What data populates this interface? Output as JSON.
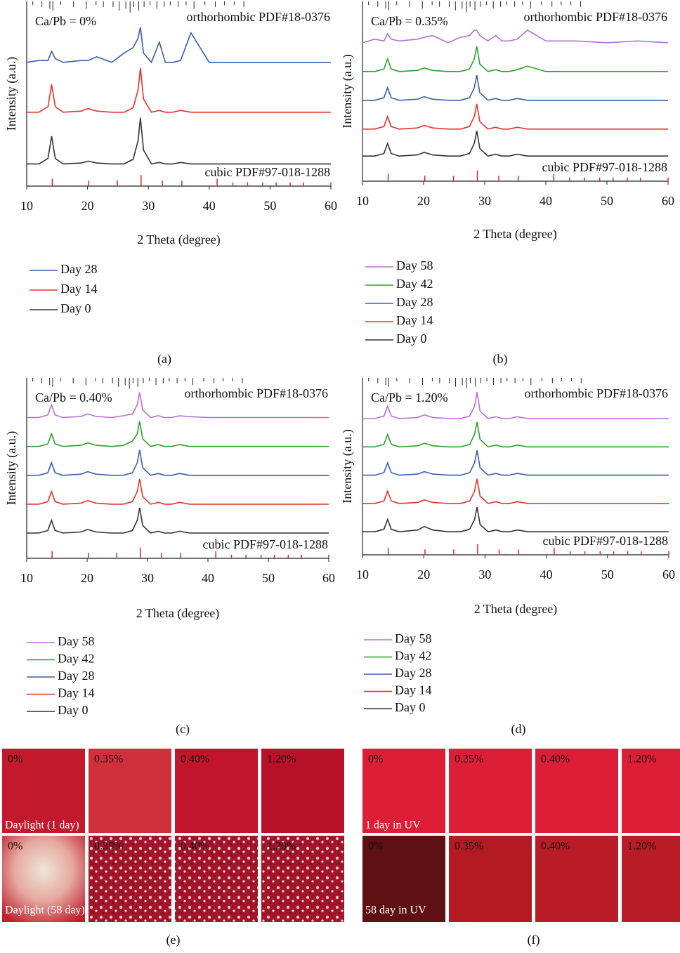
{
  "chart_data": [
    {
      "type": "line",
      "panel": "(a)",
      "annotation": "Ca/Pb = 0%",
      "xlabel": "2 Theta (degree)",
      "ylabel": "Intensity (a.u.)",
      "xlim": [
        10,
        60
      ],
      "xticks": [
        10,
        20,
        30,
        40,
        50,
        60
      ],
      "ylim": [
        0,
        100
      ],
      "x": [
        10,
        12,
        13.5,
        14.1,
        14.7,
        16,
        19,
        20.1,
        21.5,
        24,
        26,
        27.5,
        28.3,
        28.7,
        29.2,
        30.5,
        31.8,
        32.8,
        34,
        35.3,
        37,
        40,
        45,
        50,
        55,
        60
      ],
      "series": [
        {
          "name": "Day 28",
          "color": "#3a5fa8",
          "values": [
            67,
            68,
            68,
            73,
            69,
            67,
            68,
            68,
            70,
            67,
            72,
            75,
            80,
            86,
            72,
            67,
            78,
            67,
            67,
            68,
            83,
            67,
            67,
            67,
            67,
            67
          ]
        },
        {
          "name": "Day 14",
          "color": "#e8302a",
          "values": [
            40,
            40,
            43,
            55,
            43,
            40,
            40.6,
            42,
            40.6,
            40,
            40,
            42.4,
            52,
            64,
            47.2,
            40,
            41,
            40,
            40,
            41,
            40,
            40,
            40,
            40,
            40,
            40
          ]
        },
        {
          "name": "Day 0",
          "color": "#333333",
          "values": [
            12,
            12,
            15,
            27,
            15,
            12,
            12.5,
            13.5,
            12.5,
            12,
            12,
            14.5,
            24.5,
            37,
            19.5,
            12,
            12.8,
            12,
            12,
            12.8,
            12,
            12,
            12,
            12,
            12,
            12
          ]
        }
      ],
      "ortho_ref": {
        "label": "orthorhombic PDF#18-0376",
        "x": [
          11,
          12.5,
          13.8,
          14.3,
          15.6,
          17.7,
          19.8,
          21.4,
          22.6,
          24.2,
          25.2,
          26.3,
          27,
          27.6,
          28.4,
          29.3,
          30.3,
          31.4,
          32.6,
          33.6,
          34.9,
          36.2,
          37.5,
          39.3,
          41,
          42.5,
          44.1,
          45.7
        ],
        "heights": [
          2,
          3,
          4,
          5,
          2,
          3,
          4,
          2,
          3,
          3,
          5,
          4,
          6,
          3,
          5,
          3,
          2,
          4,
          3,
          2,
          3,
          2,
          4,
          2,
          3,
          2,
          2,
          3
        ]
      },
      "cubic_ref": {
        "label": "cubic PDF#97-018-1288",
        "x": [
          14.2,
          20.2,
          24.9,
          28.8,
          32.3,
          35.5,
          41.3,
          43.9,
          46.3,
          48.8,
          51,
          53.3,
          55.5,
          60
        ],
        "heights": [
          4,
          3,
          3,
          6,
          3,
          3,
          4,
          2,
          2,
          2,
          2,
          2,
          2,
          2
        ]
      }
    },
    {
      "type": "line",
      "panel": "(b)",
      "annotation": "Ca/Pb = 0.35%",
      "xlabel": "2 Theta (degree)",
      "ylabel": "Intensity (a.u.)",
      "xlim": [
        10,
        60
      ],
      "xticks": [
        10,
        20,
        30,
        40,
        50,
        60
      ],
      "ylim": [
        0,
        100
      ],
      "x": [
        10,
        12,
        13.5,
        14.1,
        14.7,
        16,
        19,
        20.1,
        21.5,
        24,
        26,
        27.5,
        28.3,
        28.7,
        29.2,
        30.5,
        31.8,
        32.8,
        34,
        35.3,
        37,
        40,
        45,
        50,
        55,
        60
      ],
      "series": [
        {
          "name": "Day 58",
          "color": "#b86fd6",
          "values": [
            77,
            79,
            78,
            82,
            79,
            78,
            79,
            80,
            81,
            77,
            80,
            81,
            84,
            84,
            81,
            78,
            81,
            78,
            78,
            79,
            84,
            78,
            78,
            77,
            78,
            77
          ]
        },
        {
          "name": "Day 42",
          "color": "#2ca02c",
          "values": [
            61,
            61,
            62.4,
            68,
            62.4,
            61,
            61.6,
            63,
            61.6,
            61,
            61,
            62.4,
            68,
            75,
            65.2,
            61,
            62,
            61,
            61,
            62,
            64,
            61,
            61,
            61,
            61,
            61
          ]
        },
        {
          "name": "Day 28",
          "color": "#3a5fa8",
          "values": [
            45,
            45,
            46.4,
            52,
            46.4,
            45,
            45.6,
            47,
            45.6,
            45,
            45,
            46.4,
            52,
            59,
            49.2,
            45,
            46,
            45,
            45,
            46,
            45,
            45,
            45,
            45,
            45,
            45
          ]
        },
        {
          "name": "Day 14",
          "color": "#e8302a",
          "values": [
            29,
            29,
            30.4,
            36,
            30.4,
            29,
            29.6,
            31,
            29.6,
            29,
            29,
            30.4,
            36,
            43,
            33.2,
            29,
            30,
            29,
            29,
            30,
            29,
            29,
            29,
            29,
            29,
            29
          ]
        },
        {
          "name": "Day 0",
          "color": "#333333",
          "values": [
            14,
            14,
            15.4,
            21,
            15.4,
            14,
            14.6,
            16,
            14.6,
            14,
            14,
            15.4,
            21,
            28,
            18.2,
            14,
            15,
            14,
            14,
            15,
            14,
            14,
            14,
            14,
            14,
            14
          ]
        }
      ],
      "ortho_ref": {
        "label": "orthorhombic PDF#18-0376",
        "x": [
          11,
          12.5,
          13.8,
          14.3,
          15.6,
          17.7,
          19.8,
          21.4,
          22.6,
          24.2,
          25.2,
          26.3,
          27,
          27.6,
          28.4,
          29.3,
          30.3,
          31.4,
          32.6,
          33.6,
          34.9,
          36.2,
          37.5,
          39.3,
          41,
          42.5,
          44.1,
          45.7
        ],
        "heights": [
          2,
          3,
          4,
          5,
          2,
          3,
          4,
          2,
          3,
          3,
          5,
          4,
          6,
          3,
          5,
          3,
          2,
          4,
          3,
          2,
          3,
          2,
          4,
          2,
          3,
          2,
          2,
          3
        ]
      },
      "cubic_ref": {
        "label": "cubic PDF#97-018-1288",
        "x": [
          14.2,
          20.2,
          24.9,
          28.8,
          32.3,
          35.5,
          41.3,
          43.9,
          46.3,
          48.8,
          51,
          53.3,
          55.5,
          60
        ],
        "heights": [
          4,
          3,
          3,
          6,
          3,
          3,
          4,
          2,
          2,
          2,
          2,
          2,
          2,
          2
        ]
      }
    },
    {
      "type": "line",
      "panel": "(c)",
      "annotation": "Ca/Pb = 0.40%",
      "xlabel": "2 Theta (degree)",
      "ylabel": "Intensity (a.u.)",
      "xlim": [
        10,
        60
      ],
      "xticks": [
        10,
        20,
        30,
        40,
        50,
        60
      ],
      "ylim": [
        0,
        100
      ],
      "x": [
        10,
        12,
        13.5,
        14.1,
        14.7,
        16,
        19,
        20.1,
        21.5,
        24,
        26,
        27.5,
        28.3,
        28.7,
        29.2,
        30.5,
        31.8,
        32.8,
        34,
        35.3,
        37,
        40,
        45,
        50,
        55,
        60
      ],
      "series": [
        {
          "name": "Day 58",
          "color": "#b86fd6",
          "values": [
            78,
            78,
            79.4,
            85,
            79.4,
            78,
            78.6,
            80,
            78.6,
            78,
            79,
            80,
            85,
            92,
            82.2,
            78,
            79,
            78,
            78,
            79,
            78.5,
            78,
            78,
            78,
            78,
            78
          ]
        },
        {
          "name": "Day 42",
          "color": "#2ca02c",
          "values": [
            62,
            62,
            63.4,
            69,
            63.4,
            62,
            62.6,
            64,
            62.6,
            62,
            62.5,
            65,
            69,
            76,
            66.2,
            62,
            63,
            62,
            62,
            63,
            62,
            62,
            62,
            62,
            62,
            62
          ]
        },
        {
          "name": "Day 28",
          "color": "#3a5fa8",
          "values": [
            46,
            46,
            47.4,
            53,
            47.4,
            46,
            46.6,
            48,
            46.6,
            46,
            46,
            47.4,
            53,
            60,
            50.2,
            46,
            47,
            46,
            46,
            47,
            46,
            46,
            46,
            46,
            46,
            46
          ]
        },
        {
          "name": "Day 14",
          "color": "#e8302a",
          "values": [
            30,
            30,
            31.4,
            37,
            31.4,
            30,
            30.6,
            32,
            30.6,
            30,
            30,
            31.4,
            37,
            44,
            34.2,
            30,
            31,
            30,
            30,
            31,
            30,
            30,
            30,
            30,
            30,
            30
          ]
        },
        {
          "name": "Day 0",
          "color": "#333333",
          "values": [
            14,
            14,
            15.4,
            21,
            15.4,
            14,
            14.6,
            16,
            14.6,
            14,
            14,
            15.4,
            21,
            28,
            18.2,
            14,
            15,
            14,
            14,
            15,
            14,
            14,
            14,
            14,
            14,
            14
          ]
        }
      ],
      "ortho_ref": {
        "label": "orthorhombic PDF#18-0376",
        "x": [
          11,
          12.5,
          13.8,
          14.3,
          15.6,
          17.7,
          19.8,
          21.4,
          22.6,
          24.2,
          25.2,
          26.3,
          27,
          27.6,
          28.4,
          29.3,
          30.3,
          31.4,
          32.6,
          33.6,
          34.9,
          36.2,
          37.5,
          39.3,
          41,
          42.5,
          44.1,
          45.7
        ],
        "heights": [
          2,
          3,
          4,
          5,
          2,
          3,
          4,
          2,
          3,
          3,
          5,
          4,
          6,
          3,
          5,
          3,
          2,
          4,
          3,
          2,
          3,
          2,
          4,
          2,
          3,
          2,
          2,
          3
        ]
      },
      "cubic_ref": {
        "label": "cubic PDF#97-018-1288",
        "x": [
          14.2,
          20.2,
          24.9,
          28.8,
          32.3,
          35.5,
          41.3,
          43.9,
          46.3,
          48.8,
          51,
          53.3,
          55.5,
          60
        ],
        "heights": [
          4,
          3,
          3,
          6,
          3,
          3,
          4,
          2,
          2,
          2,
          2,
          2,
          2,
          2
        ]
      }
    },
    {
      "type": "line",
      "panel": "(d)",
      "annotation": "Ca/Pb = 1.20%",
      "xlabel": "2 Theta (degree)",
      "ylabel": "Intensity (a.u.)",
      "xlim": [
        10,
        60
      ],
      "xticks": [
        10,
        20,
        30,
        40,
        50,
        60
      ],
      "ylim": [
        0,
        100
      ],
      "x": [
        10,
        12,
        13.5,
        14.1,
        14.7,
        16,
        19,
        20.1,
        21.5,
        24,
        26,
        27.5,
        28.3,
        28.7,
        29.2,
        30.5,
        31.8,
        32.8,
        34,
        35.3,
        37,
        40,
        45,
        50,
        55,
        60
      ],
      "series": [
        {
          "name": "Day 58",
          "color": "#b86fd6",
          "values": [
            77,
            77,
            78.4,
            84,
            78.4,
            77,
            77.6,
            79,
            77.6,
            77,
            77,
            78.4,
            84,
            92,
            81.2,
            77,
            78,
            77,
            77,
            78,
            77,
            77,
            77,
            77,
            77,
            77
          ]
        },
        {
          "name": "Day 42",
          "color": "#2ca02c",
          "values": [
            61,
            61,
            62.4,
            68,
            62.4,
            61,
            61.6,
            63,
            61.6,
            61,
            61,
            62.4,
            68,
            75,
            65.2,
            61,
            62,
            61,
            61,
            62,
            61,
            61,
            61,
            61,
            61,
            61
          ]
        },
        {
          "name": "Day 28",
          "color": "#3a5fa8",
          "values": [
            45,
            45,
            46.4,
            52,
            46.4,
            45,
            45.6,
            47,
            45.6,
            45,
            45,
            46.4,
            52,
            59,
            49.2,
            45,
            46,
            45,
            45,
            46,
            45,
            45,
            45,
            45,
            45,
            45
          ]
        },
        {
          "name": "Day 14",
          "color": "#e8302a",
          "values": [
            29,
            29,
            30.4,
            36,
            30.4,
            29,
            29.6,
            31,
            29.6,
            29,
            29,
            30.4,
            36,
            43,
            33.2,
            29,
            30,
            29,
            29,
            30,
            29,
            29,
            29,
            29,
            29,
            29
          ]
        },
        {
          "name": "Day 0",
          "color": "#333333",
          "values": [
            13,
            13,
            14.4,
            20,
            14.4,
            13,
            14,
            16,
            14,
            13,
            13,
            14.4,
            20,
            27,
            17.2,
            13,
            14,
            13,
            13,
            14,
            13,
            13,
            13,
            13,
            13,
            13
          ]
        }
      ],
      "ortho_ref": {
        "label": "orthorhombic PDF#18-0376",
        "x": [
          11,
          12.5,
          13.8,
          14.3,
          15.6,
          17.7,
          19.8,
          21.4,
          22.6,
          24.2,
          25.2,
          26.3,
          27,
          27.6,
          28.4,
          29.3,
          30.3,
          31.4,
          32.6,
          33.6,
          34.9,
          36.2,
          37.5,
          39.3,
          41,
          42.5,
          44.1,
          45.7
        ],
        "heights": [
          2,
          3,
          4,
          5,
          2,
          3,
          4,
          2,
          3,
          3,
          5,
          4,
          6,
          3,
          5,
          3,
          2,
          4,
          3,
          2,
          3,
          2,
          4,
          2,
          3,
          2,
          2,
          3
        ]
      },
      "cubic_ref": {
        "label": "cubic PDF#97-018-1288",
        "x": [
          14.2,
          20.2,
          24.9,
          28.8,
          32.3,
          35.5,
          41.3,
          43.9,
          46.3,
          48.8,
          51,
          53.3,
          55.5,
          60
        ],
        "heights": [
          4,
          3,
          3,
          6,
          3,
          3,
          4,
          2,
          2,
          2,
          2,
          2,
          2,
          2
        ]
      }
    }
  ],
  "photos": [
    {
      "panel": "(e)",
      "rows": [
        {
          "caption": "Daylight (1 day)",
          "tiles": [
            "0%",
            "0.35%",
            "0.40%",
            "1.20%"
          ]
        },
        {
          "caption": "Daylight (58 day)",
          "tiles": [
            "0%",
            "0.35%",
            "0.40%",
            "1.20%"
          ]
        }
      ]
    },
    {
      "panel": "(f)",
      "rows": [
        {
          "caption": "1 day in UV",
          "tiles": [
            "0%",
            "0.35%",
            "0.40%",
            "1.20%"
          ]
        },
        {
          "caption": "58 day in UV",
          "tiles": [
            "0%",
            "0.35%",
            "0.40%",
            "1.20%"
          ]
        }
      ]
    }
  ]
}
